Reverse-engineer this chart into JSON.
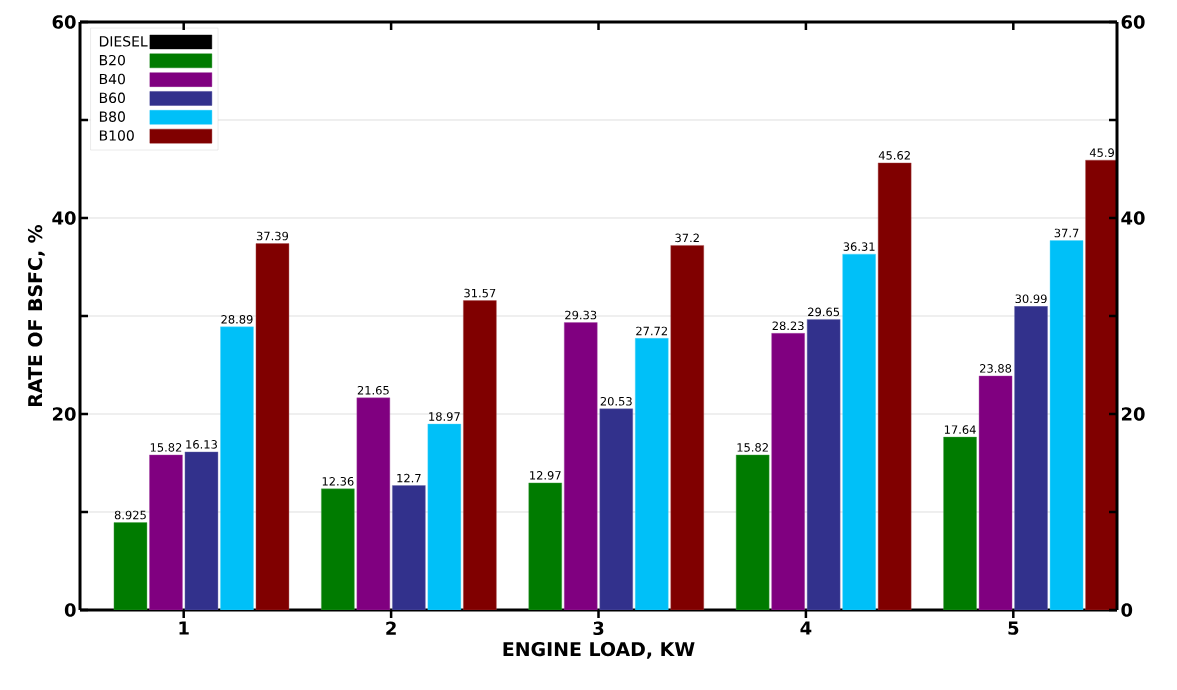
{
  "chart_data": {
    "type": "bar",
    "xlabel": "ENGINE LOAD, KW",
    "ylabel": "RATE OF BSFC, %",
    "categories": [
      "1",
      "2",
      "3",
      "4",
      "5"
    ],
    "series": [
      {
        "name": "DIESEL",
        "color": "#000000",
        "values": [
          null,
          null,
          null,
          null,
          null
        ]
      },
      {
        "name": "B20",
        "color": "#007b00",
        "values": [
          8.925,
          12.36,
          12.97,
          15.82,
          17.64
        ],
        "value_labels": [
          "8.925",
          "12.36",
          "12.97",
          "15.82",
          "17.64"
        ]
      },
      {
        "name": "B40",
        "color": "#800080",
        "values": [
          15.82,
          21.65,
          29.33,
          28.23,
          23.88
        ],
        "value_labels": [
          "15.82",
          "21.65",
          "29.33",
          "28.23",
          "23.88"
        ]
      },
      {
        "name": "B60",
        "color": "#32318c",
        "values": [
          16.13,
          12.7,
          20.53,
          29.65,
          30.99
        ],
        "value_labels": [
          "16.13",
          "12.7",
          "20.53",
          "29.65",
          "30.99"
        ]
      },
      {
        "name": "B80",
        "color": "#00c0f8",
        "values": [
          28.89,
          18.97,
          27.72,
          36.31,
          37.7
        ],
        "value_labels": [
          "28.89",
          "18.97",
          "27.72",
          "36.31",
          "37.7"
        ]
      },
      {
        "name": "B100",
        "color": "#800000",
        "values": [
          37.39,
          31.57,
          37.2,
          45.62,
          45.9
        ],
        "value_labels": [
          "37.39",
          "31.57",
          "37.2",
          "45.62",
          "45.9"
        ]
      }
    ],
    "ylim": [
      0,
      60
    ],
    "yticks": [
      0,
      {
        "value": 10,
        "label": null
      },
      20,
      {
        "value": 30,
        "label": null
      },
      40,
      {
        "value": 50,
        "label": null
      },
      60
    ],
    "y2lim": [
      0,
      60
    ],
    "y2ticks": [
      0,
      {
        "value": 10,
        "label": null
      },
      20,
      {
        "value": 30,
        "label": null
      },
      40,
      {
        "value": 50,
        "label": null
      },
      60
    ],
    "grid": "y",
    "legend": "top left"
  }
}
